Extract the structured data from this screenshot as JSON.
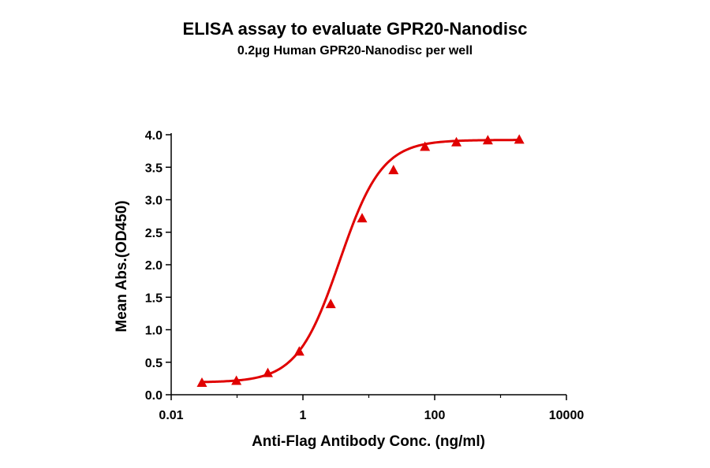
{
  "chart_data": {
    "type": "line",
    "title": "ELISA assay to evaluate GPR20-Nanodisc",
    "subtitle": "0.2µg Human GPR20-Nanodisc per well",
    "xlabel": "Anti-Flag Antibody Conc. (ng/ml)",
    "ylabel": "Mean Abs.(OD450)",
    "x_scale": "log",
    "xlim": [
      0.01,
      10000
    ],
    "ylim": [
      0,
      4
    ],
    "x_ticks": [
      0.01,
      1,
      100,
      10000
    ],
    "x_tick_labels": [
      "0.01",
      "1",
      "100",
      "10000"
    ],
    "y_ticks": [
      0,
      0.5,
      1,
      1.5,
      2,
      2.5,
      3,
      3.5,
      4
    ],
    "y_tick_labels": [
      "0.0",
      "0.5",
      "1.0",
      "1.5",
      "2.0",
      "2.5",
      "3.0",
      "3.5",
      "4.0"
    ],
    "series": [
      {
        "color": "#e00000",
        "marker": "triangle",
        "x": [
          0.0293,
          0.0977,
          0.293,
          0.879,
          2.64,
          7.91,
          23.7,
          71.2,
          213.6,
          640.8,
          1922
        ],
        "y": [
          0.18,
          0.21,
          0.33,
          0.66,
          1.39,
          2.71,
          3.45,
          3.81,
          3.88,
          3.91,
          3.92
        ]
      }
    ],
    "fit_curve": {
      "model": "4PL",
      "bottom": 0.19,
      "top": 3.92,
      "ec50": 3.6,
      "hill": 1.35
    },
    "grid": false,
    "legend": "none"
  }
}
